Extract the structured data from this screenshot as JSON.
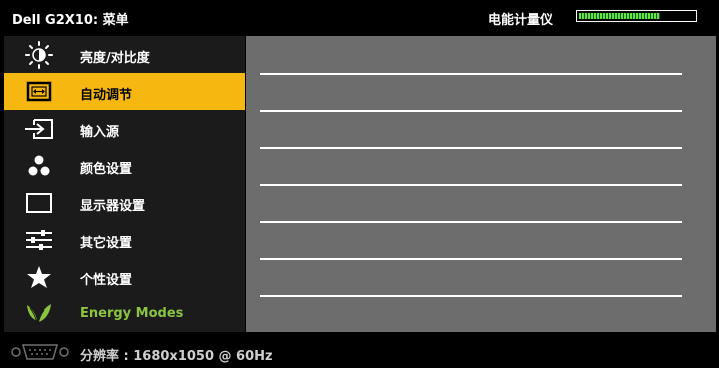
{
  "header": {
    "title": "Dell G2X10: 菜单",
    "energy_meter_label": "电能计量仪",
    "energy_meter_level_percent": 70
  },
  "menu": {
    "items": [
      {
        "label": "亮度/对比度",
        "icon": "brightness-icon"
      },
      {
        "label": "自动调节",
        "icon": "auto-adjust-icon"
      },
      {
        "label": "输入源",
        "icon": "input-source-icon"
      },
      {
        "label": "颜色设置",
        "icon": "color-settings-icon"
      },
      {
        "label": "显示器设置",
        "icon": "display-settings-icon"
      },
      {
        "label": "其它设置",
        "icon": "other-settings-icon"
      },
      {
        "label": "个性设置",
        "icon": "personalize-star-icon"
      },
      {
        "label": "Energy Modes",
        "icon": "energy-leaf-icon"
      }
    ],
    "selected_index": 1
  },
  "footer": {
    "resolution_text": "分辨率 : 1680x1050 @ 60Hz",
    "icon": "vga-connector-icon"
  },
  "colors": {
    "selected_highlight": "#f5b710",
    "energy_text": "#8bc53f",
    "meter_fill": "#5fe83a",
    "content_panel": "#6d6d6d"
  }
}
